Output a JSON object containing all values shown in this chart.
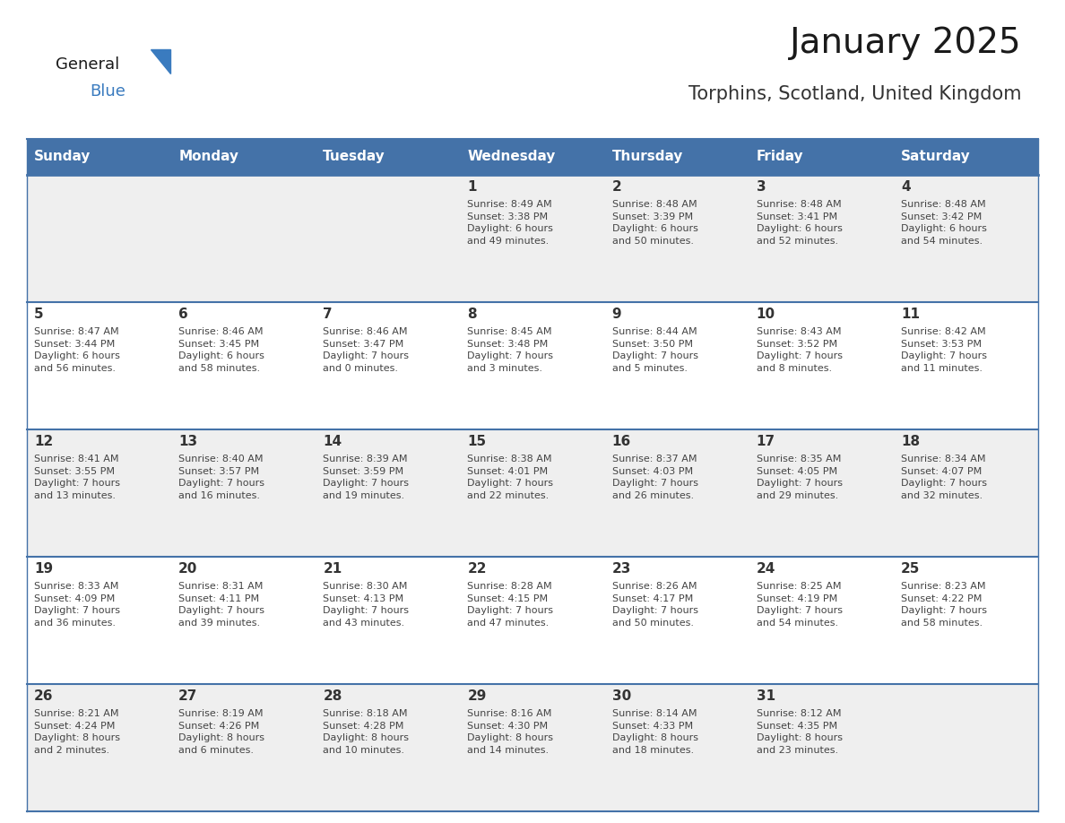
{
  "title": "January 2025",
  "subtitle": "Torphins, Scotland, United Kingdom",
  "days_of_week": [
    "Sunday",
    "Monday",
    "Tuesday",
    "Wednesday",
    "Thursday",
    "Friday",
    "Saturday"
  ],
  "header_bg": "#4472A8",
  "header_text_color": "#FFFFFF",
  "row_bg_light": "#EFEFEF",
  "row_bg_white": "#FFFFFF",
  "cell_text_color": "#444444",
  "day_number_color": "#333333",
  "divider_color": "#4472A8",
  "background_color": "#FFFFFF",
  "title_color": "#1a1a1a",
  "subtitle_color": "#333333",
  "logo_general_color": "#1a1a1a",
  "logo_blue_color": "#3a7bbf",
  "logo_triangle_color": "#3a7bbf",
  "calendar_data": [
    [
      null,
      null,
      null,
      {
        "day": 1,
        "text": "Sunrise: 8:49 AM\nSunset: 3:38 PM\nDaylight: 6 hours\nand 49 minutes."
      },
      {
        "day": 2,
        "text": "Sunrise: 8:48 AM\nSunset: 3:39 PM\nDaylight: 6 hours\nand 50 minutes."
      },
      {
        "day": 3,
        "text": "Sunrise: 8:48 AM\nSunset: 3:41 PM\nDaylight: 6 hours\nand 52 minutes."
      },
      {
        "day": 4,
        "text": "Sunrise: 8:48 AM\nSunset: 3:42 PM\nDaylight: 6 hours\nand 54 minutes."
      }
    ],
    [
      {
        "day": 5,
        "text": "Sunrise: 8:47 AM\nSunset: 3:44 PM\nDaylight: 6 hours\nand 56 minutes."
      },
      {
        "day": 6,
        "text": "Sunrise: 8:46 AM\nSunset: 3:45 PM\nDaylight: 6 hours\nand 58 minutes."
      },
      {
        "day": 7,
        "text": "Sunrise: 8:46 AM\nSunset: 3:47 PM\nDaylight: 7 hours\nand 0 minutes."
      },
      {
        "day": 8,
        "text": "Sunrise: 8:45 AM\nSunset: 3:48 PM\nDaylight: 7 hours\nand 3 minutes."
      },
      {
        "day": 9,
        "text": "Sunrise: 8:44 AM\nSunset: 3:50 PM\nDaylight: 7 hours\nand 5 minutes."
      },
      {
        "day": 10,
        "text": "Sunrise: 8:43 AM\nSunset: 3:52 PM\nDaylight: 7 hours\nand 8 minutes."
      },
      {
        "day": 11,
        "text": "Sunrise: 8:42 AM\nSunset: 3:53 PM\nDaylight: 7 hours\nand 11 minutes."
      }
    ],
    [
      {
        "day": 12,
        "text": "Sunrise: 8:41 AM\nSunset: 3:55 PM\nDaylight: 7 hours\nand 13 minutes."
      },
      {
        "day": 13,
        "text": "Sunrise: 8:40 AM\nSunset: 3:57 PM\nDaylight: 7 hours\nand 16 minutes."
      },
      {
        "day": 14,
        "text": "Sunrise: 8:39 AM\nSunset: 3:59 PM\nDaylight: 7 hours\nand 19 minutes."
      },
      {
        "day": 15,
        "text": "Sunrise: 8:38 AM\nSunset: 4:01 PM\nDaylight: 7 hours\nand 22 minutes."
      },
      {
        "day": 16,
        "text": "Sunrise: 8:37 AM\nSunset: 4:03 PM\nDaylight: 7 hours\nand 26 minutes."
      },
      {
        "day": 17,
        "text": "Sunrise: 8:35 AM\nSunset: 4:05 PM\nDaylight: 7 hours\nand 29 minutes."
      },
      {
        "day": 18,
        "text": "Sunrise: 8:34 AM\nSunset: 4:07 PM\nDaylight: 7 hours\nand 32 minutes."
      }
    ],
    [
      {
        "day": 19,
        "text": "Sunrise: 8:33 AM\nSunset: 4:09 PM\nDaylight: 7 hours\nand 36 minutes."
      },
      {
        "day": 20,
        "text": "Sunrise: 8:31 AM\nSunset: 4:11 PM\nDaylight: 7 hours\nand 39 minutes."
      },
      {
        "day": 21,
        "text": "Sunrise: 8:30 AM\nSunset: 4:13 PM\nDaylight: 7 hours\nand 43 minutes."
      },
      {
        "day": 22,
        "text": "Sunrise: 8:28 AM\nSunset: 4:15 PM\nDaylight: 7 hours\nand 47 minutes."
      },
      {
        "day": 23,
        "text": "Sunrise: 8:26 AM\nSunset: 4:17 PM\nDaylight: 7 hours\nand 50 minutes."
      },
      {
        "day": 24,
        "text": "Sunrise: 8:25 AM\nSunset: 4:19 PM\nDaylight: 7 hours\nand 54 minutes."
      },
      {
        "day": 25,
        "text": "Sunrise: 8:23 AM\nSunset: 4:22 PM\nDaylight: 7 hours\nand 58 minutes."
      }
    ],
    [
      {
        "day": 26,
        "text": "Sunrise: 8:21 AM\nSunset: 4:24 PM\nDaylight: 8 hours\nand 2 minutes."
      },
      {
        "day": 27,
        "text": "Sunrise: 8:19 AM\nSunset: 4:26 PM\nDaylight: 8 hours\nand 6 minutes."
      },
      {
        "day": 28,
        "text": "Sunrise: 8:18 AM\nSunset: 4:28 PM\nDaylight: 8 hours\nand 10 minutes."
      },
      {
        "day": 29,
        "text": "Sunrise: 8:16 AM\nSunset: 4:30 PM\nDaylight: 8 hours\nand 14 minutes."
      },
      {
        "day": 30,
        "text": "Sunrise: 8:14 AM\nSunset: 4:33 PM\nDaylight: 8 hours\nand 18 minutes."
      },
      {
        "day": 31,
        "text": "Sunrise: 8:12 AM\nSunset: 4:35 PM\nDaylight: 8 hours\nand 23 minutes."
      },
      null
    ]
  ]
}
